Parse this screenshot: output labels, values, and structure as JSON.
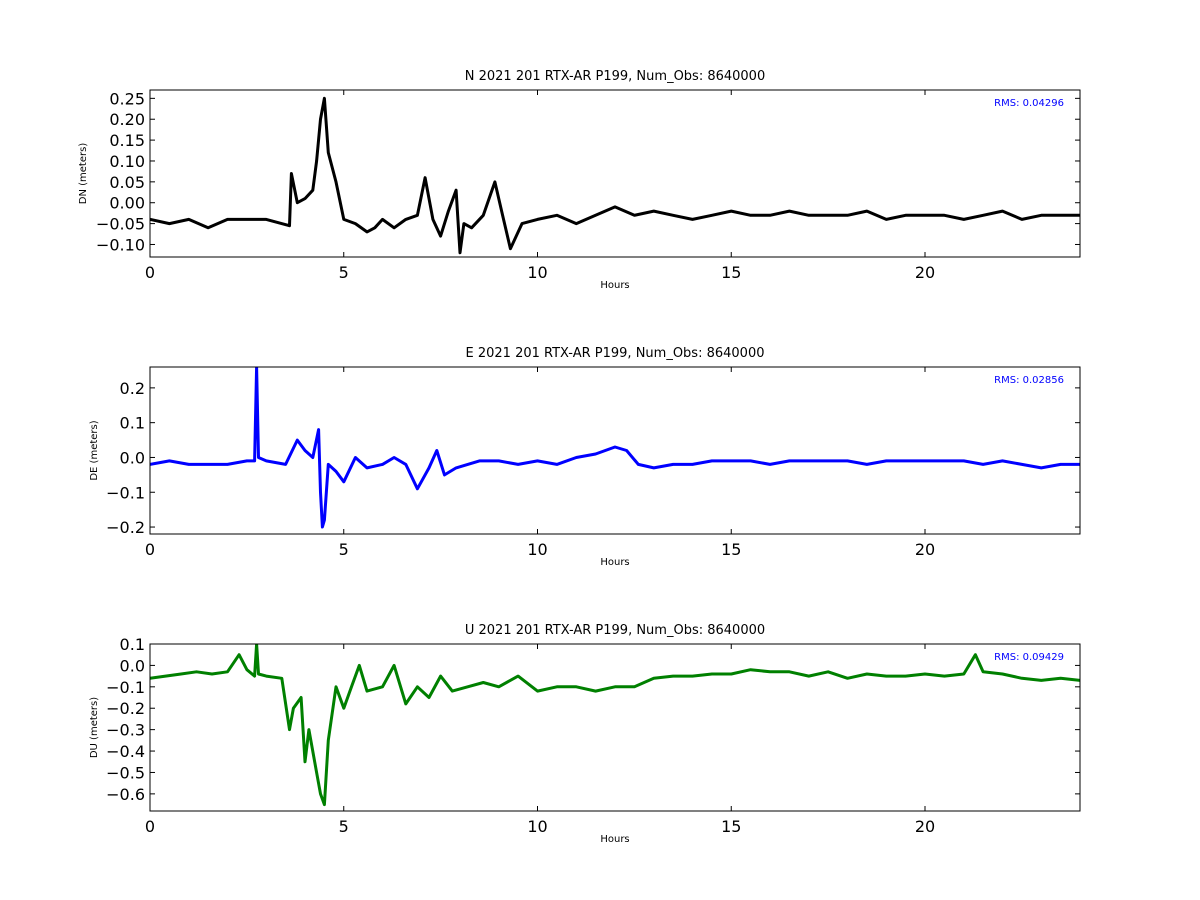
{
  "chart_data": [
    {
      "type": "line",
      "title": "N 2021 201 RTX-AR  P199, Num_Obs: 8640000",
      "xlabel": "Hours",
      "ylabel": "DN (meters)",
      "xlim": [
        0,
        24
      ],
      "ylim": [
        -0.13,
        0.27
      ],
      "xticks": [
        0,
        5,
        10,
        15,
        20
      ],
      "yticks": [
        -0.1,
        -0.05,
        0.0,
        0.05,
        0.1,
        0.15,
        0.2,
        0.25
      ],
      "ytick_labels": [
        "−0.10",
        "−0.05",
        "0.00",
        "0.05",
        "0.10",
        "0.15",
        "0.20",
        "0.25"
      ],
      "annotation": "RMS:  0.04296",
      "annotation_color": "#0000ff",
      "series": [
        {
          "color": "#000000",
          "x": [
            0,
            0.5,
            1.0,
            1.5,
            2.0,
            2.5,
            3.0,
            3.6,
            3.65,
            3.8,
            4.0,
            4.2,
            4.3,
            4.4,
            4.5,
            4.6,
            4.8,
            5.0,
            5.3,
            5.6,
            5.8,
            6.0,
            6.3,
            6.6,
            6.9,
            7.1,
            7.3,
            7.5,
            7.7,
            7.9,
            8.0,
            8.1,
            8.3,
            8.6,
            8.9,
            9.1,
            9.3,
            9.6,
            10.0,
            10.5,
            11.0,
            11.5,
            12.0,
            12.5,
            13.0,
            13.5,
            14.0,
            14.5,
            15.0,
            15.5,
            16.0,
            16.5,
            17.0,
            17.5,
            18.0,
            18.5,
            19.0,
            19.5,
            20.0,
            20.5,
            21.0,
            21.5,
            22.0,
            22.5,
            23.0,
            23.5,
            24.0
          ],
          "y": [
            -0.04,
            -0.05,
            -0.04,
            -0.06,
            -0.04,
            -0.04,
            -0.04,
            -0.055,
            0.07,
            0.0,
            0.01,
            0.03,
            0.1,
            0.2,
            0.25,
            0.12,
            0.05,
            -0.04,
            -0.05,
            -0.07,
            -0.06,
            -0.04,
            -0.06,
            -0.04,
            -0.03,
            0.06,
            -0.04,
            -0.08,
            -0.02,
            0.03,
            -0.12,
            -0.05,
            -0.06,
            -0.03,
            0.05,
            -0.03,
            -0.11,
            -0.05,
            -0.04,
            -0.03,
            -0.05,
            -0.03,
            -0.01,
            -0.03,
            -0.02,
            -0.03,
            -0.04,
            -0.03,
            -0.02,
            -0.03,
            -0.03,
            -0.02,
            -0.03,
            -0.03,
            -0.03,
            -0.02,
            -0.04,
            -0.03,
            -0.03,
            -0.03,
            -0.04,
            -0.03,
            -0.02,
            -0.04,
            -0.03,
            -0.03,
            -0.03
          ]
        }
      ]
    },
    {
      "type": "line",
      "title": "E 2021 201 RTX-AR  P199, Num_Obs: 8640000",
      "xlabel": "Hours",
      "ylabel": "DE (meters)",
      "xlim": [
        0,
        24
      ],
      "ylim": [
        -0.22,
        0.26
      ],
      "xticks": [
        0,
        5,
        10,
        15,
        20
      ],
      "yticks": [
        -0.2,
        -0.1,
        0.0,
        0.1,
        0.2
      ],
      "ytick_labels": [
        "−0.2",
        "−0.1",
        "0.0",
        "0.1",
        "0.2"
      ],
      "annotation": "RMS:  0.02856",
      "annotation_color": "#0000ff",
      "series": [
        {
          "color": "#0000ff",
          "x": [
            0,
            0.5,
            1.0,
            1.5,
            2.0,
            2.5,
            2.7,
            2.75,
            2.8,
            3.0,
            3.5,
            3.8,
            4.0,
            4.2,
            4.35,
            4.4,
            4.45,
            4.5,
            4.6,
            4.8,
            5.0,
            5.3,
            5.6,
            6.0,
            6.3,
            6.6,
            6.9,
            7.2,
            7.4,
            7.6,
            7.9,
            8.2,
            8.5,
            9.0,
            9.5,
            10.0,
            10.5,
            11.0,
            11.5,
            12.0,
            12.3,
            12.6,
            13.0,
            13.5,
            14.0,
            14.5,
            15.0,
            15.5,
            16.0,
            16.5,
            17.0,
            17.5,
            18.0,
            18.5,
            19.0,
            19.5,
            20.0,
            20.5,
            21.0,
            21.5,
            22.0,
            22.5,
            23.0,
            23.5,
            24.0
          ],
          "y": [
            -0.02,
            -0.01,
            -0.02,
            -0.02,
            -0.02,
            -0.01,
            -0.01,
            0.26,
            0.0,
            -0.01,
            -0.02,
            0.05,
            0.02,
            0.0,
            0.08,
            -0.1,
            -0.2,
            -0.18,
            -0.02,
            -0.04,
            -0.07,
            0.0,
            -0.03,
            -0.02,
            0.0,
            -0.02,
            -0.09,
            -0.03,
            0.02,
            -0.05,
            -0.03,
            -0.02,
            -0.01,
            -0.01,
            -0.02,
            -0.01,
            -0.02,
            0.0,
            0.01,
            0.03,
            0.02,
            -0.02,
            -0.03,
            -0.02,
            -0.02,
            -0.01,
            -0.01,
            -0.01,
            -0.02,
            -0.01,
            -0.01,
            -0.01,
            -0.01,
            -0.02,
            -0.01,
            -0.01,
            -0.01,
            -0.01,
            -0.01,
            -0.02,
            -0.01,
            -0.02,
            -0.03,
            -0.02,
            -0.02
          ]
        }
      ]
    },
    {
      "type": "line",
      "title": "U 2021 201 RTX-AR  P199, Num_Obs: 8640000",
      "xlabel": "Hours",
      "ylabel": "DU (meters)",
      "xlim": [
        0,
        24
      ],
      "ylim": [
        -0.68,
        0.1
      ],
      "xticks": [
        0,
        5,
        10,
        15,
        20
      ],
      "yticks": [
        -0.6,
        -0.5,
        -0.4,
        -0.3,
        -0.2,
        -0.1,
        0.0,
        0.1
      ],
      "ytick_labels": [
        "−0.6",
        "−0.5",
        "−0.4",
        "−0.3",
        "−0.2",
        "−0.1",
        "0.0",
        "0.1"
      ],
      "annotation": "RMS:  0.09429",
      "annotation_color": "#0000ff",
      "series": [
        {
          "color": "#008000",
          "x": [
            0,
            0.4,
            0.8,
            1.2,
            1.6,
            2.0,
            2.3,
            2.5,
            2.7,
            2.75,
            2.8,
            3.0,
            3.4,
            3.6,
            3.7,
            3.9,
            4.0,
            4.1,
            4.3,
            4.4,
            4.5,
            4.6,
            4.8,
            5.0,
            5.2,
            5.4,
            5.6,
            6.0,
            6.3,
            6.6,
            6.9,
            7.2,
            7.5,
            7.8,
            8.2,
            8.6,
            9.0,
            9.5,
            10.0,
            10.5,
            11.0,
            11.5,
            12.0,
            12.5,
            13.0,
            13.5,
            14.0,
            14.5,
            15.0,
            15.5,
            16.0,
            16.5,
            17.0,
            17.5,
            18.0,
            18.5,
            19.0,
            19.5,
            20.0,
            20.5,
            21.0,
            21.3,
            21.5,
            22.0,
            22.5,
            23.0,
            23.5,
            24.0
          ],
          "y": [
            -0.06,
            -0.05,
            -0.04,
            -0.03,
            -0.04,
            -0.03,
            0.05,
            -0.02,
            -0.05,
            0.1,
            -0.04,
            -0.05,
            -0.06,
            -0.3,
            -0.2,
            -0.15,
            -0.45,
            -0.3,
            -0.5,
            -0.6,
            -0.65,
            -0.35,
            -0.1,
            -0.2,
            -0.1,
            0.0,
            -0.12,
            -0.1,
            0.0,
            -0.18,
            -0.1,
            -0.15,
            -0.05,
            -0.12,
            -0.1,
            -0.08,
            -0.1,
            -0.05,
            -0.12,
            -0.1,
            -0.1,
            -0.12,
            -0.1,
            -0.1,
            -0.06,
            -0.05,
            -0.05,
            -0.04,
            -0.04,
            -0.02,
            -0.03,
            -0.03,
            -0.05,
            -0.03,
            -0.06,
            -0.04,
            -0.05,
            -0.05,
            -0.04,
            -0.05,
            -0.04,
            0.05,
            -0.03,
            -0.04,
            -0.06,
            -0.07,
            -0.06,
            -0.07
          ]
        }
      ]
    }
  ]
}
